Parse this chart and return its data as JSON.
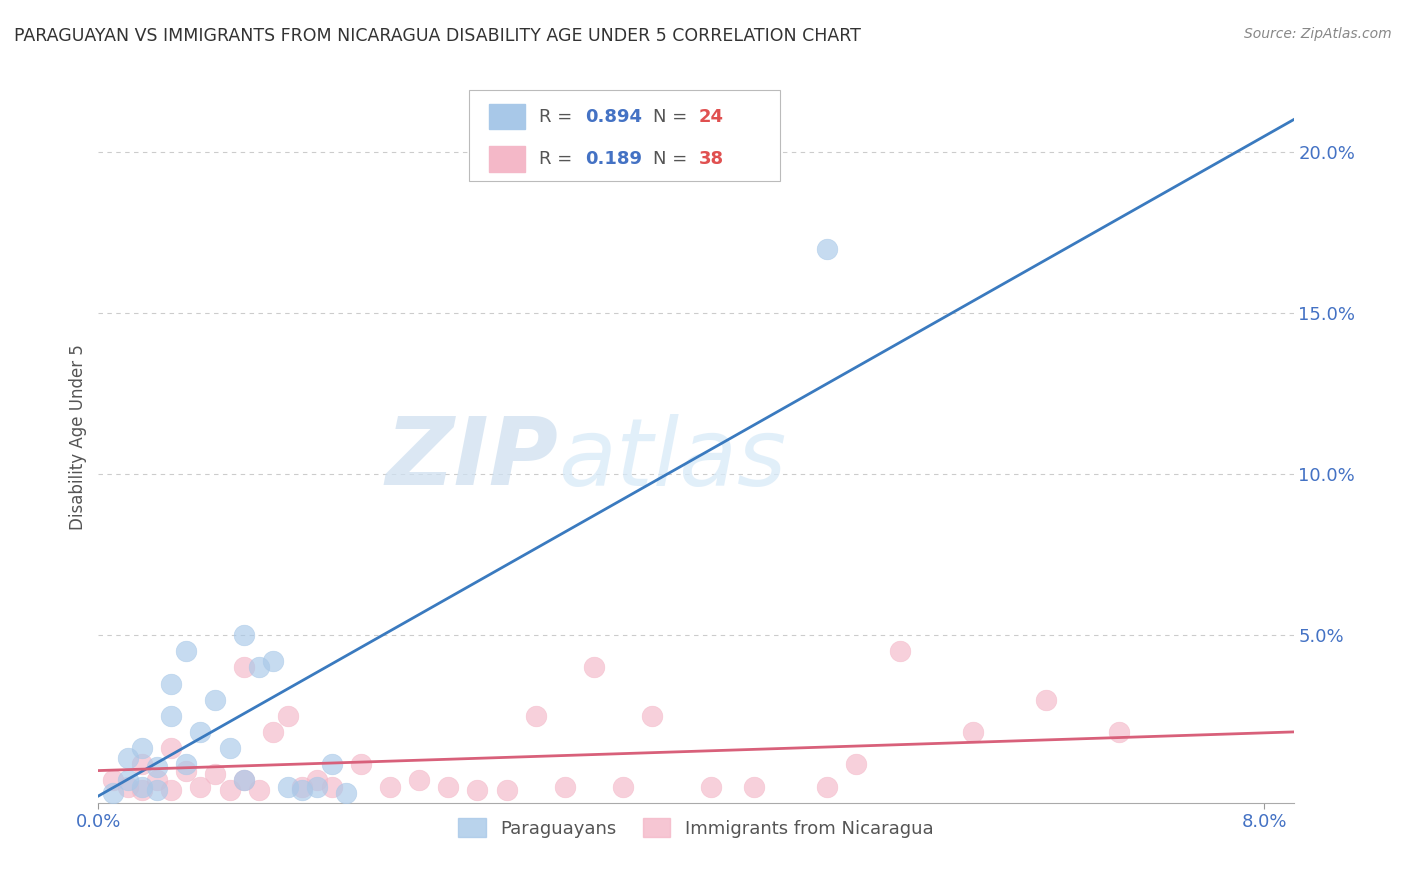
{
  "title": "PARAGUAYAN VS IMMIGRANTS FROM NICARAGUA DISABILITY AGE UNDER 5 CORRELATION CHART",
  "source": "Source: ZipAtlas.com",
  "ylabel": "Disability Age Under 5",
  "legend_blue_r": "0.894",
  "legend_blue_n": "24",
  "legend_pink_r": "0.189",
  "legend_pink_n": "38",
  "blue_color": "#a8c8e8",
  "pink_color": "#f4b8c8",
  "blue_line_color": "#3a7abf",
  "pink_line_color": "#d8607a",
  "blue_scatter_x": [
    0.001,
    0.002,
    0.002,
    0.003,
    0.003,
    0.004,
    0.004,
    0.005,
    0.005,
    0.006,
    0.006,
    0.007,
    0.008,
    0.009,
    0.01,
    0.01,
    0.011,
    0.012,
    0.013,
    0.014,
    0.015,
    0.016,
    0.017,
    0.05
  ],
  "blue_scatter_y": [
    0.001,
    0.005,
    0.012,
    0.003,
    0.015,
    0.009,
    0.002,
    0.025,
    0.035,
    0.045,
    0.01,
    0.02,
    0.03,
    0.015,
    0.05,
    0.005,
    0.04,
    0.042,
    0.003,
    0.002,
    0.003,
    0.01,
    0.001,
    0.17
  ],
  "pink_scatter_x": [
    0.001,
    0.002,
    0.003,
    0.003,
    0.004,
    0.005,
    0.005,
    0.006,
    0.007,
    0.008,
    0.009,
    0.01,
    0.01,
    0.011,
    0.012,
    0.013,
    0.014,
    0.015,
    0.016,
    0.018,
    0.02,
    0.022,
    0.024,
    0.026,
    0.028,
    0.03,
    0.032,
    0.034,
    0.036,
    0.038,
    0.042,
    0.045,
    0.05,
    0.052,
    0.055,
    0.06,
    0.065,
    0.07
  ],
  "pink_scatter_y": [
    0.005,
    0.003,
    0.01,
    0.002,
    0.005,
    0.015,
    0.002,
    0.008,
    0.003,
    0.007,
    0.002,
    0.005,
    0.04,
    0.002,
    0.02,
    0.025,
    0.003,
    0.005,
    0.003,
    0.01,
    0.003,
    0.005,
    0.003,
    0.002,
    0.002,
    0.025,
    0.003,
    0.04,
    0.003,
    0.025,
    0.003,
    0.003,
    0.003,
    0.01,
    0.045,
    0.02,
    0.03,
    0.02
  ],
  "xlim": [
    0.0,
    0.082
  ],
  "ylim": [
    -0.002,
    0.225
  ],
  "blue_line_x": [
    -0.002,
    0.082
  ],
  "blue_line_y": [
    -0.005,
    0.21
  ],
  "pink_line_x": [
    0.0,
    0.082
  ],
  "pink_line_y": [
    0.008,
    0.02
  ],
  "watermark_zip": "ZIP",
  "watermark_atlas": "atlas",
  "background_color": "#ffffff",
  "grid_color": "#cccccc",
  "yticks": [
    0.05,
    0.1,
    0.15,
    0.2
  ],
  "ytick_labels": [
    "5.0%",
    "10.0%",
    "15.0%",
    "20.0%"
  ],
  "xticks": [
    0.0,
    0.08
  ],
  "xtick_labels": [
    "0.0%",
    "8.0%"
  ]
}
